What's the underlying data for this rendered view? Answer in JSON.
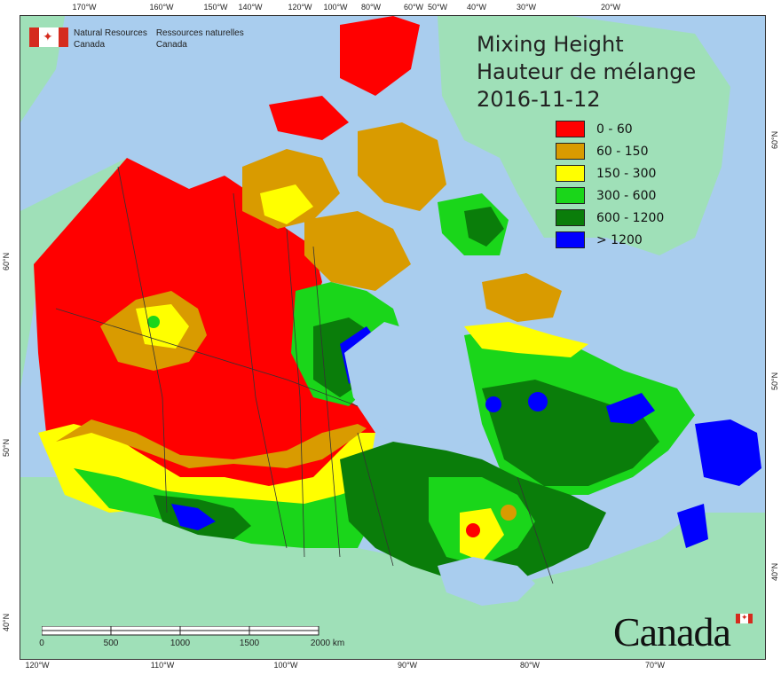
{
  "title": {
    "line1": "Mixing Height",
    "line2": "Hauteur de mélange",
    "date": "2016-11-12"
  },
  "legend": [
    {
      "label": "0 - 60",
      "color": "#ff0000"
    },
    {
      "label": "60 - 150",
      "color": "#d99b00"
    },
    {
      "label": "150 - 300",
      "color": "#ffff00"
    },
    {
      "label": "300 - 600",
      "color": "#1ad61a"
    },
    {
      "label": "600 - 1200",
      "color": "#0a7d0a"
    },
    {
      "label": "> 1200",
      "color": "#0000ff"
    }
  ],
  "agency": {
    "english_line1": "Natural Resources",
    "english_line2": "Canada",
    "french_line1": "Ressources naturelles",
    "french_line2": "Canada",
    "flag_leaf": "✦"
  },
  "wordmark": "Canada",
  "scalebar": {
    "labels": [
      "0",
      "500",
      "1000",
      "1500",
      "2000 km"
    ]
  },
  "graticule": {
    "top": [
      "170°W",
      "160°W",
      "150°W",
      "140°W",
      "120°W",
      "100°W",
      "80°W",
      "60°W",
      "50°W",
      "40°W",
      "30°W",
      "20°W"
    ],
    "bottom": [
      "120°W",
      "110°W",
      "100°W",
      "90°W",
      "80°W",
      "70°W"
    ],
    "left": [
      "60°N",
      "50°N",
      "40°N"
    ],
    "right": [
      "60°N",
      "50°N",
      "40°N"
    ]
  },
  "colors": {
    "ocean": "#a9cdee",
    "land_outside": "#9fe0b8",
    "boundary": "#333333"
  }
}
